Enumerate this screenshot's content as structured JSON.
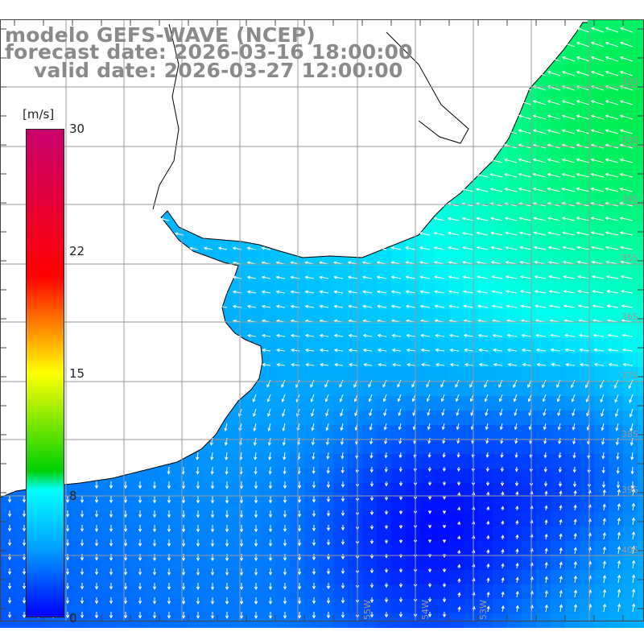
{
  "title": {
    "line1": "modelo GEFS-WAVE (NCEP)",
    "line2": "forecast date: 2026-03-16 18:00:00",
    "line3": "valid date: 2026-03-27 12:00:00"
  },
  "colorbar": {
    "unit": "[m/s]",
    "ticks": [
      "30",
      "22",
      "15",
      "8",
      "0"
    ],
    "colors": [
      "#c8006e",
      "#ff0000",
      "#ff8000",
      "#ffff00",
      "#00d000",
      "#00ffff",
      "#00a0ff",
      "#0000ff"
    ]
  },
  "lat_labels": [
    "32S",
    "33S",
    "34S",
    "35S",
    "36S",
    "37S",
    "38S",
    "39S",
    "40S"
  ],
  "lon_labels": [
    "55W",
    "54W",
    "53W"
  ],
  "colors": {
    "land": "#ffffff",
    "coastline": "#000000",
    "grid": "#999999",
    "arrow": "#ffffff",
    "title": "#8a8a8a"
  }
}
